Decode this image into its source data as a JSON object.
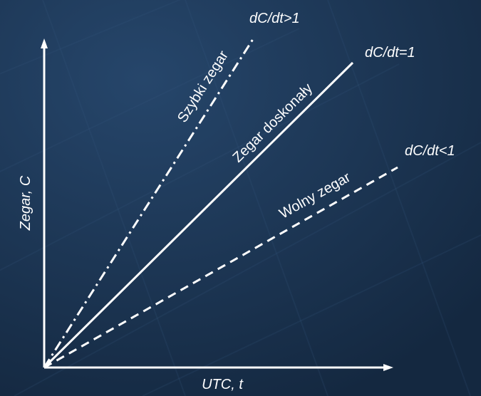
{
  "axes": {
    "y_label": "Zegar, C",
    "x_label": "UTC, t"
  },
  "lines": {
    "fast": {
      "label": "Szybki zegar",
      "rate": "dC/dt>1",
      "style": "dash-dot"
    },
    "perfect": {
      "label": "Zegar doskonały",
      "rate": "dC/dt=1",
      "style": "solid"
    },
    "slow": {
      "label": "Wolny zegar",
      "rate": "dC/dt<1",
      "style": "dashed"
    }
  },
  "colors": {
    "background": "#1b3352",
    "foreground": "#ffffff"
  }
}
